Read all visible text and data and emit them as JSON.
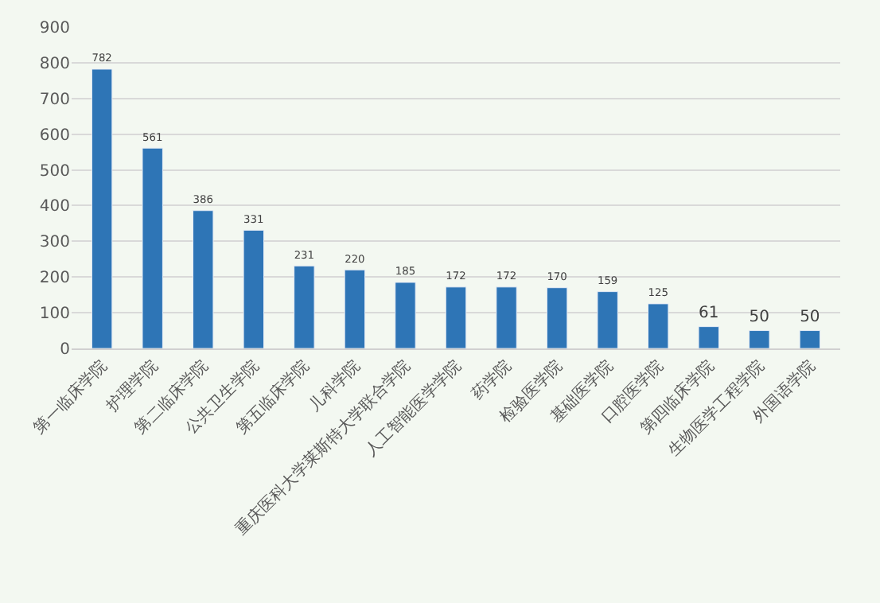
{
  "chart_data": {
    "type": "bar",
    "categories": [
      "第一临床学院",
      "护理学院",
      "第二临床学院",
      "公共卫生学院",
      "第五临床学院",
      "儿科学院",
      "重庆医科大学莱斯特大学联合学院",
      "人工智能医学学院",
      "药学院",
      "检验医学院",
      "基础医学院",
      "口腔医学院",
      "第四临床学院",
      "生物医学工程学院",
      "外国语学院"
    ],
    "values": [
      782,
      561,
      386,
      331,
      231,
      220,
      185,
      172,
      172,
      170,
      159,
      125,
      61,
      50,
      50
    ],
    "color": "#2e75b6",
    "ylim": [
      0,
      900
    ],
    "yticks": [
      0,
      100,
      200,
      300,
      400,
      500,
      600,
      700,
      800,
      900
    ],
    "grid": "y",
    "data_labels": true,
    "legend": false
  }
}
